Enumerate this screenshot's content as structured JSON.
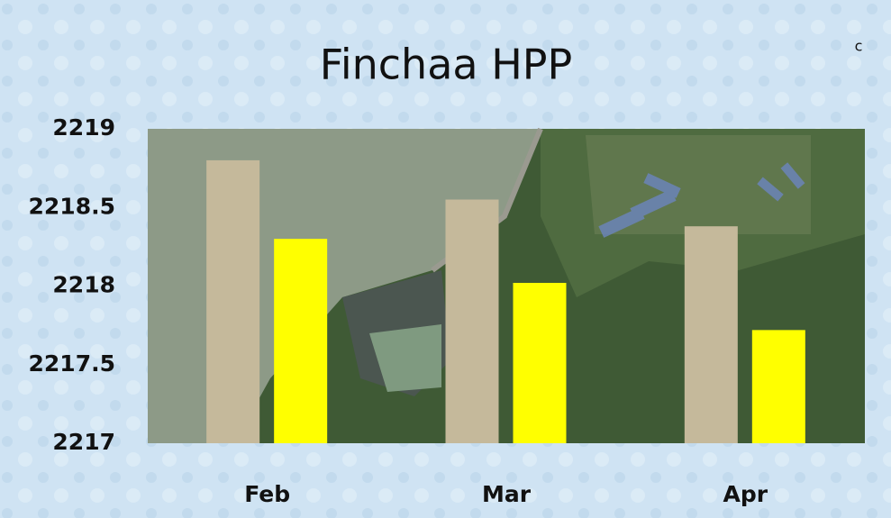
{
  "chart_data": {
    "type": "bar",
    "title": "Finchaa HPP",
    "annotation": "c",
    "categories": [
      "Feb",
      "Mar",
      "Apr"
    ],
    "series": [
      {
        "color": "#c5b99b",
        "values": [
          2218.8,
          2218.55,
          2218.38
        ]
      },
      {
        "color": "#ffff00",
        "values": [
          2218.3,
          2218.02,
          2217.72
        ]
      }
    ],
    "ylim": [
      2217,
      2219
    ],
    "yticks": [
      2217,
      2217.5,
      2218,
      2218.5,
      2219
    ]
  }
}
